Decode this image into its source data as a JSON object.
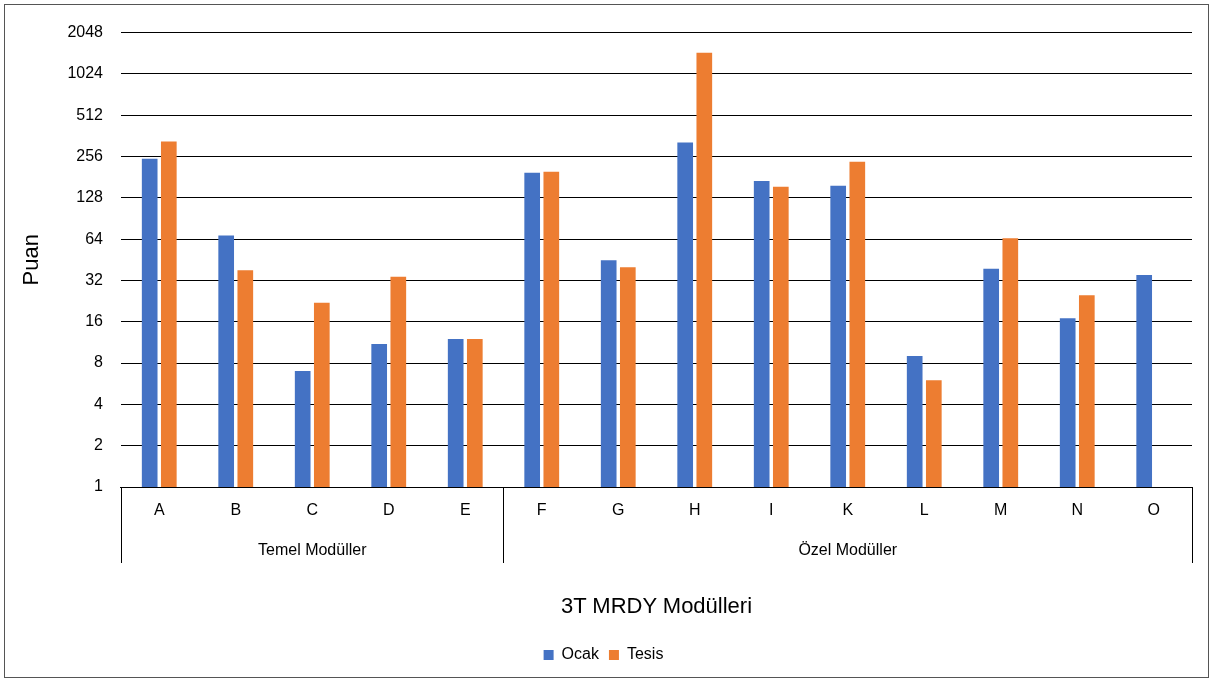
{
  "chart_data": {
    "type": "bar",
    "xlabel": "3T MRDY Modülleri",
    "ylabel": "Puan",
    "categories": [
      "A",
      "B",
      "C",
      "D",
      "E",
      "F",
      "G",
      "H",
      "I",
      "K",
      "L",
      "M",
      "N",
      "O"
    ],
    "series": [
      {
        "name": "Ocak",
        "color": "#4472c4",
        "values": [
          247,
          68,
          7,
          11,
          12,
          195,
          45,
          324,
          170,
          157,
          9,
          39,
          17,
          35
        ]
      },
      {
        "name": "Tesis",
        "color": "#ed7d31",
        "values": [
          330,
          38,
          22,
          34,
          12,
          198,
          40,
          1460,
          154,
          235,
          6,
          65,
          25,
          null
        ]
      }
    ],
    "log": "y",
    "ylim": [
      1,
      2048
    ],
    "yticks": [
      1,
      2,
      4,
      8,
      16,
      32,
      64,
      128,
      256,
      512,
      1024,
      2048
    ],
    "grid": "y",
    "legend": "bottom",
    "annotations": [
      "Temel Modüller",
      "Özel Modüller"
    ]
  }
}
